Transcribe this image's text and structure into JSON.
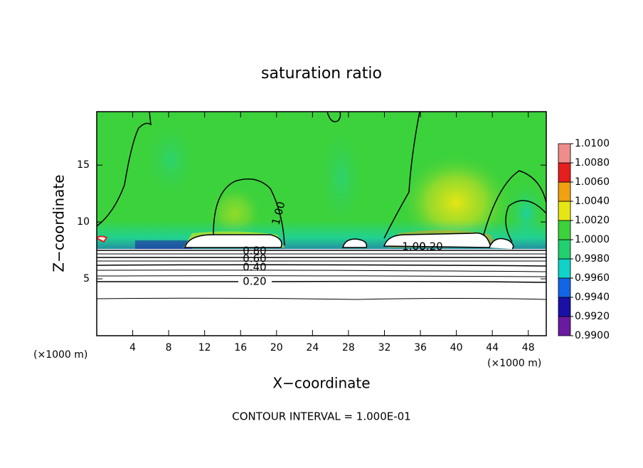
{
  "chart_data": {
    "type": "contour",
    "title": "saturation ratio",
    "xlabel": "X−coordinate",
    "ylabel": "Z−coordinate",
    "x_unit_left": "(×1000 m)",
    "x_unit_right": "(×1000 m)",
    "footer": "CONTOUR INTERVAL = 1.000E-01",
    "xlim": [
      0,
      50
    ],
    "xticks": [
      4,
      8,
      12,
      16,
      20,
      24,
      28,
      32,
      36,
      40,
      44,
      48
    ],
    "ylim": [
      0,
      19.7
    ],
    "yticks": [
      5,
      10,
      15
    ],
    "colorbar": {
      "ticks": [
        {
          "value": 0.99,
          "label": "0.9900"
        },
        {
          "value": 0.992,
          "label": "0.9920"
        },
        {
          "value": 0.994,
          "label": "0.9940"
        },
        {
          "value": 0.996,
          "label": "0.9960"
        },
        {
          "value": 0.998,
          "label": "0.9980"
        },
        {
          "value": 1.0,
          "label": "1.0000"
        },
        {
          "value": 1.002,
          "label": "1.0020"
        },
        {
          "value": 1.004,
          "label": "1.0040"
        },
        {
          "value": 1.006,
          "label": "1.0060"
        },
        {
          "value": 1.008,
          "label": "1.0080"
        },
        {
          "value": 1.01,
          "label": "1.0100"
        }
      ],
      "colors": [
        "#6a1aa0",
        "#1a10a8",
        "#1464e6",
        "#10d2c8",
        "#22d070",
        "#3cd23c",
        "#e6e614",
        "#f0a010",
        "#e61e1e",
        "#f08c8c"
      ]
    },
    "contour_labels": [
      "1.00",
      "0.80",
      "0.60",
      "0.40",
      "0.20",
      "1.00",
      "0.20"
    ]
  }
}
